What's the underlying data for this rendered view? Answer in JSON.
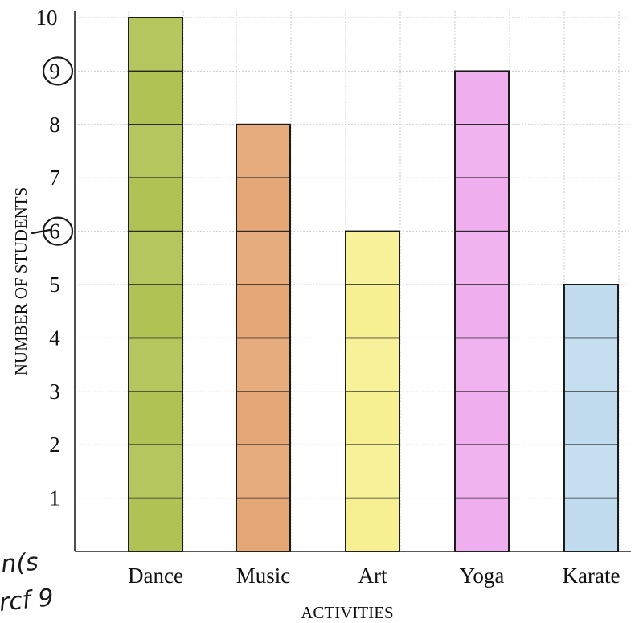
{
  "chart_data": {
    "type": "bar",
    "categories": [
      "Dance",
      "Music",
      "Art",
      "Yoga",
      "Karate"
    ],
    "values": [
      10,
      8,
      6,
      9,
      5
    ],
    "colors": [
      "#a9bd45",
      "#e3a06a",
      "#f6ef8a",
      "#eea8ee",
      "#bcd9ee"
    ],
    "xlabel": "ACTIVITIES",
    "ylabel": "NUMBER OF STUDENTS",
    "ylim": [
      0,
      10
    ],
    "yticks": [
      "1",
      "2",
      "3",
      "4",
      "5",
      "6",
      "7",
      "8",
      "9",
      "10"
    ],
    "grid": true,
    "circled_ticks": [
      9,
      6
    ]
  },
  "handwriting": {
    "line1": "n(s",
    "line2": "rcf 9"
  }
}
